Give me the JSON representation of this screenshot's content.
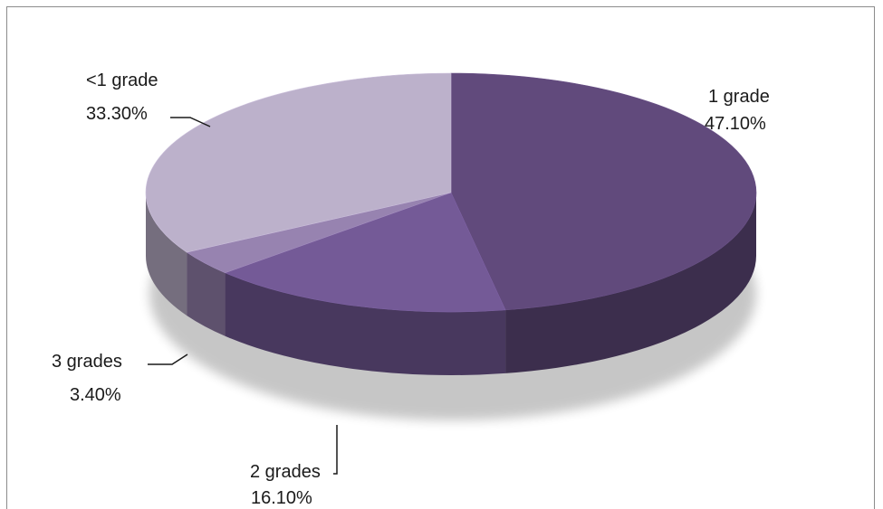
{
  "chart_data": {
    "type": "pie",
    "style": "3d",
    "categories": [
      "1 grade",
      "2 grades",
      "3 grades",
      "<1 grade"
    ],
    "values": [
      47.1,
      16.1,
      3.4,
      33.3
    ],
    "value_labels": [
      "47.10%",
      "16.10%",
      "3.40%",
      "33.30%"
    ],
    "colors": [
      "#614a7c",
      "#745a97",
      "#9783b0",
      "#bcb1cb"
    ],
    "title": "",
    "legend": "none"
  }
}
